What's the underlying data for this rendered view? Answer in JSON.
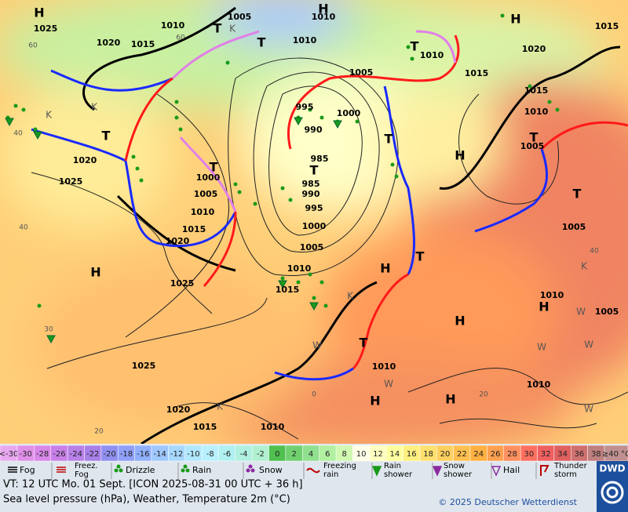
{
  "map": {
    "isobar_labels": [
      "1005",
      "1010",
      "1020",
      "1015",
      "1025",
      "1010",
      "1010",
      "1010",
      "1015",
      "1005",
      "1020",
      "1015",
      "1015",
      "1010",
      "1005",
      "995",
      "1000",
      "990",
      "985",
      "985",
      "990",
      "995",
      "1000",
      "1005",
      "1010",
      "1015",
      "1020",
      "1025",
      "1000",
      "1005",
      "1010",
      "1015",
      "1020",
      "1025",
      "1025",
      "1020",
      "1015",
      "1010",
      "1010",
      "1010",
      "1010",
      "1005",
      "1005"
    ],
    "pressure_centres": [
      "H",
      "H",
      "H",
      "T",
      "T",
      "T",
      "T",
      "T",
      "T",
      "T",
      "H",
      "T",
      "T",
      "T",
      "H",
      "H",
      "H",
      "H",
      "T",
      "H",
      "H"
    ],
    "airmass_labels": [
      "K",
      "K",
      "K",
      "K",
      "K",
      "K",
      "W",
      "W",
      "W",
      "W",
      "W",
      "W"
    ],
    "isotherm_labels": [
      "60",
      "60",
      "40",
      "40",
      "30",
      "20",
      "0",
      "20",
      "40"
    ]
  },
  "temperature_scale": [
    {
      "label": "<-30",
      "color": "#e8a8f0"
    },
    {
      "label": "-30",
      "color": "#e090e8"
    },
    {
      "label": "-28",
      "color": "#d888e8"
    },
    {
      "label": "-26",
      "color": "#c880e8"
    },
    {
      "label": "-24",
      "color": "#b880e8"
    },
    {
      "label": "-22",
      "color": "#a880e8"
    },
    {
      "label": "-20",
      "color": "#9090f0"
    },
    {
      "label": "-18",
      "color": "#90a0f8"
    },
    {
      "label": "-16",
      "color": "#90b0ff"
    },
    {
      "label": "-14",
      "color": "#a0c8ff"
    },
    {
      "label": "-12",
      "color": "#a8d8ff"
    },
    {
      "label": "-10",
      "color": "#b0e8ff"
    },
    {
      "label": "-8",
      "color": "#b8f0ff"
    },
    {
      "label": "-6",
      "color": "#b0f0f0"
    },
    {
      "label": "-4",
      "color": "#b0f0e0"
    },
    {
      "label": "-2",
      "color": "#b0f0d0"
    },
    {
      "label": "0",
      "color": "#50c050"
    },
    {
      "label": "2",
      "color": "#70d070"
    },
    {
      "label": "4",
      "color": "#90e090"
    },
    {
      "label": "6",
      "color": "#b0f0a0"
    },
    {
      "label": "8",
      "color": "#d0f8b0"
    },
    {
      "label": "10",
      "color": "#ffffe8"
    },
    {
      "label": "12",
      "color": "#ffffc0"
    },
    {
      "label": "14",
      "color": "#ffffa0"
    },
    {
      "label": "16",
      "color": "#fff080"
    },
    {
      "label": "18",
      "color": "#ffe070"
    },
    {
      "label": "20",
      "color": "#ffd060"
    },
    {
      "label": "22",
      "color": "#ffc050"
    },
    {
      "label": "24",
      "color": "#ffb040"
    },
    {
      "label": "26",
      "color": "#ffa050"
    },
    {
      "label": "28",
      "color": "#ff9060"
    },
    {
      "label": "30",
      "color": "#ff7060"
    },
    {
      "label": "32",
      "color": "#f06060"
    },
    {
      "label": "34",
      "color": "#e06060"
    },
    {
      "label": "36",
      "color": "#d07070"
    },
    {
      "label": "38",
      "color": "#c08080"
    },
    {
      "label": "≥40 °C",
      "color": "#c09090"
    }
  ],
  "weather_legend": [
    {
      "lines": [
        "Fog"
      ]
    },
    {
      "lines": [
        "Freez.",
        "Fog"
      ]
    },
    {
      "lines": [
        "Drizzle"
      ]
    },
    {
      "lines": [
        "Rain"
      ]
    },
    {
      "lines": [
        "Snow"
      ]
    },
    {
      "lines": [
        "Freezing",
        "rain"
      ]
    },
    {
      "lines": [
        "Rain",
        "shower"
      ]
    },
    {
      "lines": [
        "Snow",
        "shower"
      ]
    },
    {
      "lines": [
        "Hail"
      ]
    },
    {
      "lines": [
        "Thunder",
        "storm"
      ]
    }
  ],
  "footer": {
    "valid_time": "VT: 12 UTC Mo.  01 Sept. [ICON 2025-08-31  00 UTC + 36 h]",
    "description": "Sea level pressure (hPa), Weather, Temperature 2m (°C)",
    "copyright": "© 2025 Deutscher Wetterdienst",
    "logo": "DWD"
  }
}
